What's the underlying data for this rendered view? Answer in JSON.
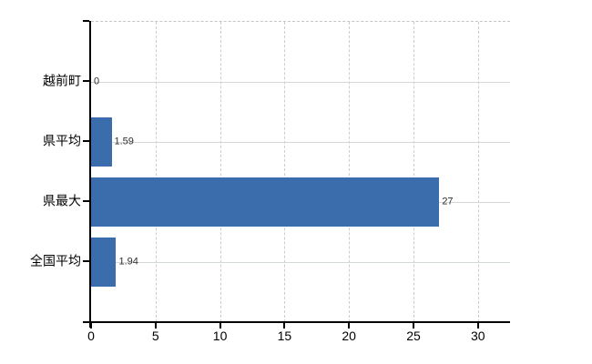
{
  "chart_data": {
    "type": "bar",
    "orientation": "horizontal",
    "title": "",
    "xlabel": "",
    "ylabel": "",
    "categories": [
      "越前町",
      "県平均",
      "県最大",
      "全国平均"
    ],
    "values": [
      0,
      1.59,
      27,
      1.94
    ],
    "value_labels": [
      "0",
      "1.59",
      "27",
      "1.94"
    ],
    "x_tick_labels": [
      "0",
      "5",
      "10",
      "15",
      "20",
      "25",
      "30"
    ],
    "x_tick_values": [
      0,
      5,
      10,
      15,
      20,
      25,
      30
    ],
    "xlim": [
      0,
      32.5
    ],
    "grid": true,
    "legend": false,
    "gridline_style": {
      "vertical": "dashed",
      "horizontal": "solid"
    },
    "colors": {
      "bar": "#3b6cab",
      "value_label": "#2e2e2e",
      "axis": "#000000",
      "h_grid": "#d2d8d2",
      "v_grid": "#d0cacd",
      "plot_top_border": "#c9c3c6",
      "background": "#ffffff",
      "tick_label": "#000000",
      "category_label": "#000000"
    }
  }
}
